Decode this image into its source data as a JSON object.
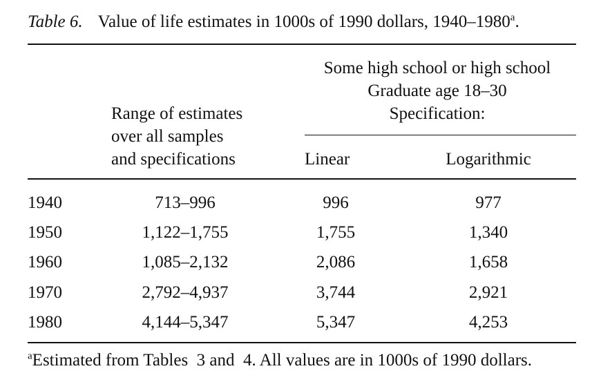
{
  "table": {
    "label": "Table 6.",
    "title": "Value of life estimates in 1000s of 1990 dollars, 1940–1980",
    "title_note_marker": "a",
    "headers": {
      "range_line1": "Range of estimates",
      "range_line2": "over all samples",
      "range_line3": "and specifications",
      "group_line1": "Some high school or high school",
      "group_line2": "Graduate age 18–30",
      "group_line3": "Specification:",
      "linear": "Linear",
      "logarithmic": "Logarithmic"
    },
    "rows": [
      {
        "year": "1940",
        "range": "713–996",
        "linear": "996",
        "log": "977"
      },
      {
        "year": "1950",
        "range": "1,122–1,755",
        "linear": "1,755",
        "log": "1,340"
      },
      {
        "year": "1960",
        "range": "1,085–2,132",
        "linear": "2,086",
        "log": "1,658"
      },
      {
        "year": "1970",
        "range": "2,792–4,937",
        "linear": "3,744",
        "log": "2,921"
      },
      {
        "year": "1980",
        "range": "4,144–5,347",
        "linear": "5,347",
        "log": "4,253"
      }
    ],
    "footnote_marker": "a",
    "footnote": "Estimated from Tables  3 and  4. All values are in 1000s of 1990 dollars."
  }
}
